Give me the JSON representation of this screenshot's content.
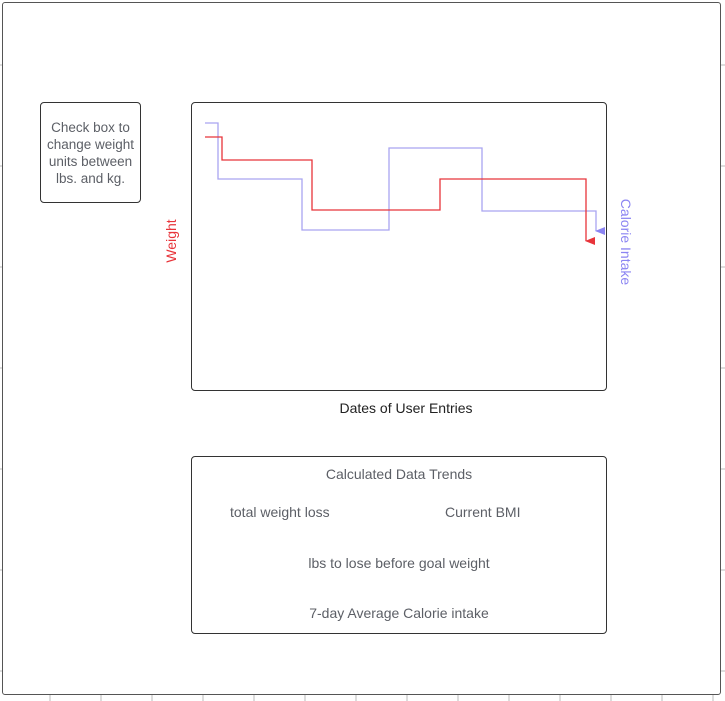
{
  "note": {
    "text": "Check box to change weight units between lbs. and kg."
  },
  "chart": {
    "y_left_label": "Weight",
    "y_right_label": "Calorie Intake",
    "x_label": "Dates of User Entries",
    "colors": {
      "weight": "#e8343a",
      "calorie": "#a9a5f0",
      "calorie_label": "#8b84f2"
    }
  },
  "trends": {
    "title": "Calculated Data Trends",
    "total_weight_loss": "total weight loss",
    "current_bmi": "Current BMI",
    "lbs_to_goal": "lbs to lose before goal weight",
    "avg_calorie": "7-day Average Calorie intake"
  }
}
